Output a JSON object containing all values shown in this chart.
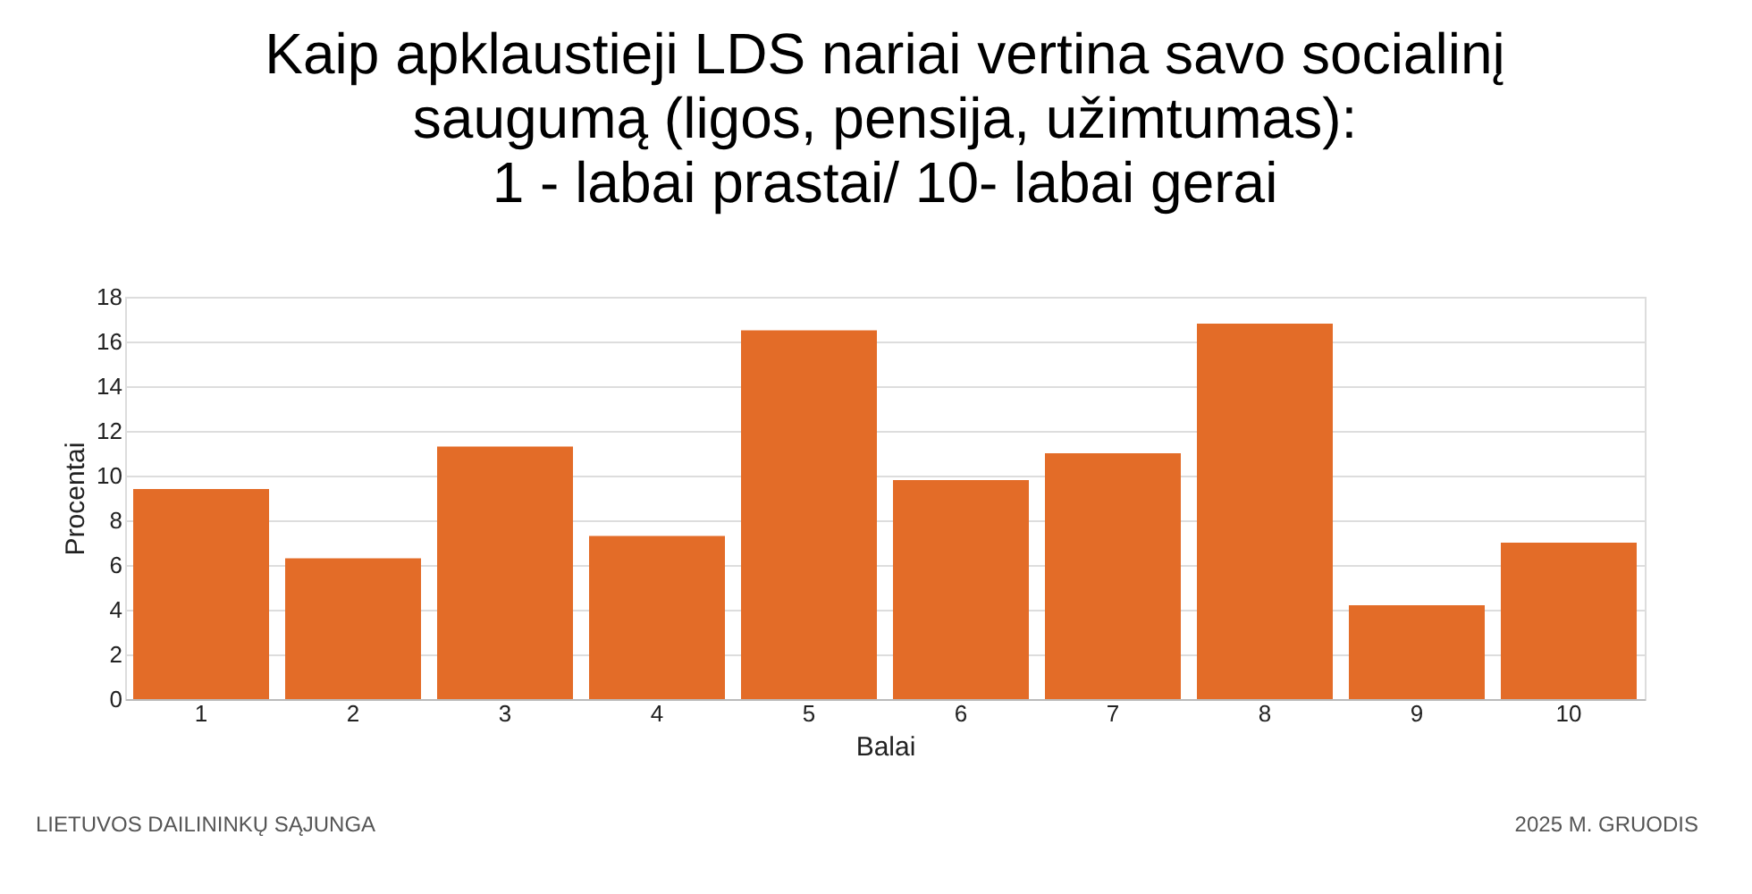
{
  "chart_data": {
    "type": "bar",
    "title": [
      "Kaip apklaustieji LDS nariai vertina savo socialinį",
      "saugumą (ligos, pensija, užimtumas):",
      "1 - labai prastai/ 10- labai gerai"
    ],
    "xlabel": "Balai",
    "ylabel": "Procentai",
    "categories": [
      "1",
      "2",
      "3",
      "4",
      "5",
      "6",
      "7",
      "8",
      "9",
      "10"
    ],
    "values": [
      9.4,
      6.3,
      11.3,
      7.3,
      16.5,
      9.8,
      11.0,
      16.8,
      4.2,
      7.0
    ],
    "color": "#e36c28",
    "ylim": [
      0,
      18
    ],
    "yticks": [
      0,
      2,
      4,
      6,
      8,
      10,
      12,
      14,
      16,
      18
    ],
    "grid": "y",
    "annotations": [
      "LIETUVOS DAILININKŲ SĄJUNGA",
      "2025 M. GRUODIS"
    ]
  }
}
